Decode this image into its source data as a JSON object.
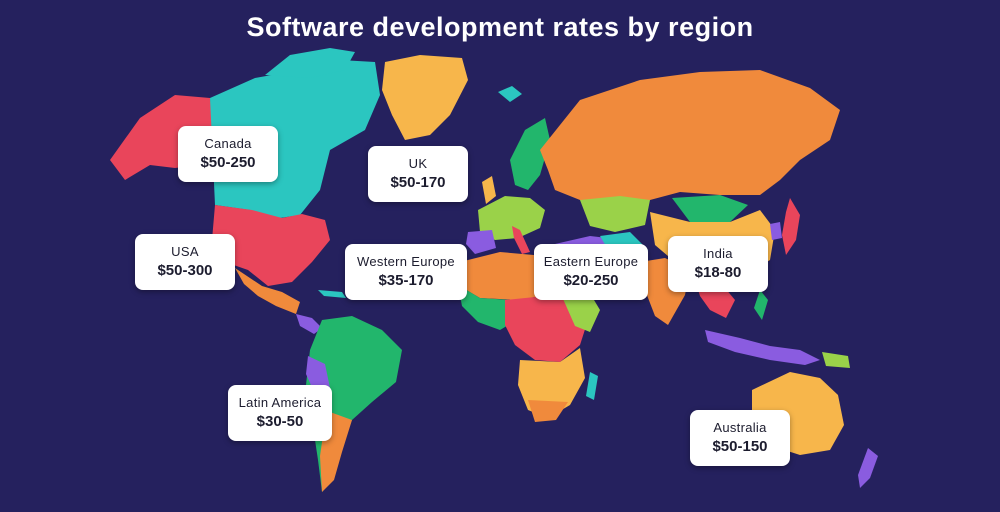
{
  "title": "Software development rates by region",
  "colors": {
    "background": "#25215e",
    "land_orange": "#f08a3c",
    "land_yellow": "#f7b64b",
    "land_turquoise": "#2bc6c0",
    "land_red": "#e9455b",
    "land_green": "#22b66c",
    "land_purple": "#8a5ce0",
    "land_lime": "#9ad249",
    "label_bg": "#ffffff"
  },
  "regions": [
    {
      "id": "canada",
      "name": "Canada",
      "rate": "$50-250"
    },
    {
      "id": "uk",
      "name": "UK",
      "rate": "$50-170"
    },
    {
      "id": "usa",
      "name": "USA",
      "rate": "$50-300"
    },
    {
      "id": "weu",
      "name": "Western Europe",
      "rate": "$35-170"
    },
    {
      "id": "eeu",
      "name": "Eastern Europe",
      "rate": "$20-250"
    },
    {
      "id": "india",
      "name": "India",
      "rate": "$18-80"
    },
    {
      "id": "latam",
      "name": "Latin America",
      "rate": "$30-50"
    },
    {
      "id": "aus",
      "name": "Australia",
      "rate": "$50-150"
    }
  ]
}
